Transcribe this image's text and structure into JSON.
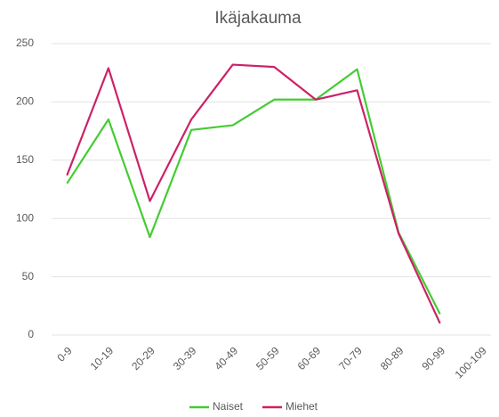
{
  "chart_data": {
    "type": "line",
    "title": "Ikäjakauma",
    "categories": [
      "0-9",
      "10-19",
      "20-29",
      "30-39",
      "40-49",
      "50-59",
      "60-69",
      "70-79",
      "80-89",
      "90-99",
      "100-109"
    ],
    "series": [
      {
        "name": "Naiset",
        "color": "#44cc33",
        "values": [
          130,
          185,
          84,
          176,
          180,
          202,
          202,
          228,
          88,
          18,
          null
        ]
      },
      {
        "name": "Miehet",
        "color": "#cc2266",
        "values": [
          137,
          229,
          115,
          185,
          232,
          230,
          202,
          210,
          87,
          10,
          null
        ]
      }
    ],
    "ylim": [
      0,
      250
    ],
    "yticks": [
      0,
      50,
      100,
      150,
      200,
      250
    ],
    "grid": true,
    "legend": "bottom"
  }
}
